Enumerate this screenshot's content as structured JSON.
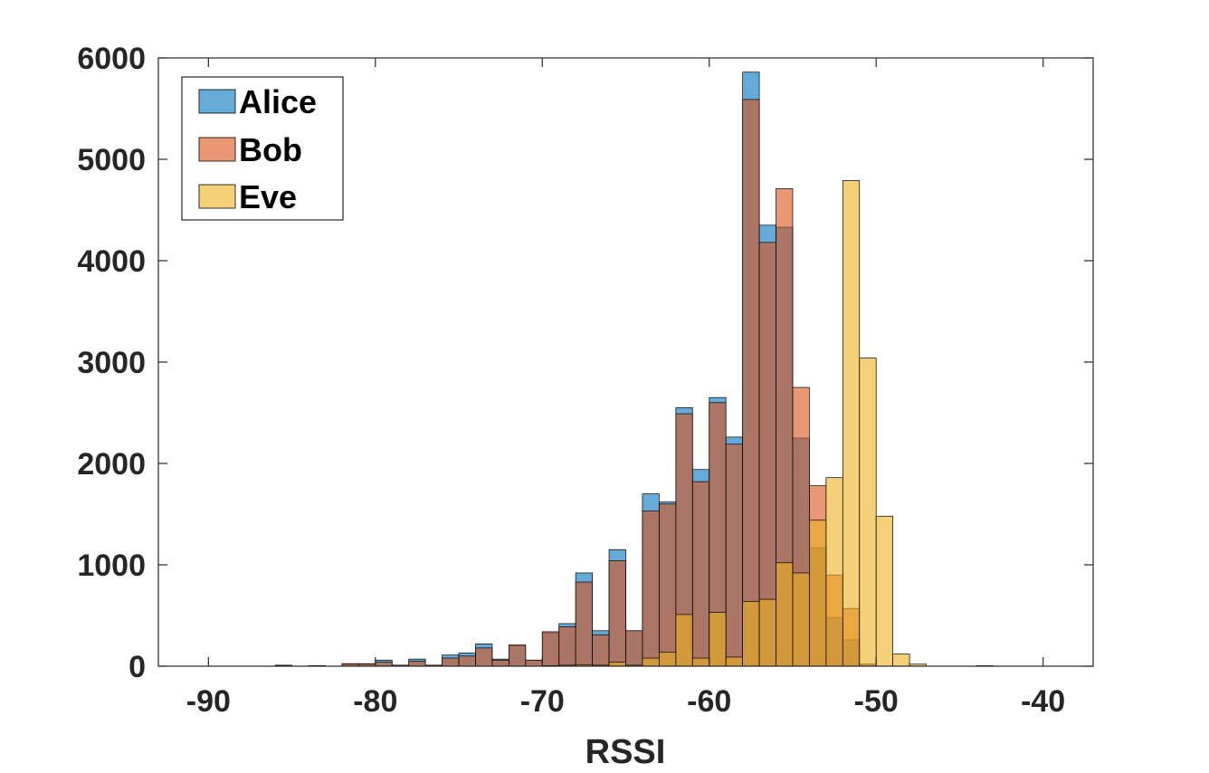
{
  "chart_data": {
    "type": "bar",
    "subtype": "overlaid-histogram",
    "title": "",
    "xlabel": "RSSI",
    "ylabel": "",
    "xlim": [
      -93,
      -37
    ],
    "ylim": [
      0,
      6000
    ],
    "xticks": [
      -90,
      -80,
      -70,
      -60,
      -50,
      -40
    ],
    "yticks": [
      0,
      1000,
      2000,
      3000,
      4000,
      5000,
      6000
    ],
    "grid": false,
    "legend_position": "top-left",
    "bin_width": 1,
    "series": [
      {
        "name": "Alice",
        "color": "#0072BD",
        "bins": [
          {
            "x": -86,
            "y": 10
          },
          {
            "x": -84,
            "y": 5
          },
          {
            "x": -82,
            "y": 20
          },
          {
            "x": -81,
            "y": 20
          },
          {
            "x": -80,
            "y": 60
          },
          {
            "x": -79,
            "y": 10
          },
          {
            "x": -78,
            "y": 70
          },
          {
            "x": -77,
            "y": 10
          },
          {
            "x": -76,
            "y": 110
          },
          {
            "x": -75,
            "y": 130
          },
          {
            "x": -74,
            "y": 220
          },
          {
            "x": -73,
            "y": 70
          },
          {
            "x": -72,
            "y": 200
          },
          {
            "x": -71,
            "y": 60
          },
          {
            "x": -70,
            "y": 330
          },
          {
            "x": -69,
            "y": 420
          },
          {
            "x": -68,
            "y": 920
          },
          {
            "x": -67,
            "y": 350
          },
          {
            "x": -66,
            "y": 1150
          },
          {
            "x": -65,
            "y": 350
          },
          {
            "x": -64,
            "y": 1700
          },
          {
            "x": -63,
            "y": 1620
          },
          {
            "x": -62,
            "y": 2550
          },
          {
            "x": -61,
            "y": 1940
          },
          {
            "x": -60,
            "y": 2650
          },
          {
            "x": -59,
            "y": 2260
          },
          {
            "x": -58,
            "y": 5860
          },
          {
            "x": -57,
            "y": 4350
          },
          {
            "x": -56,
            "y": 4330
          },
          {
            "x": -55,
            "y": 2250
          },
          {
            "x": -54,
            "y": 1170
          },
          {
            "x": -53,
            "y": 480
          },
          {
            "x": -52,
            "y": 260
          },
          {
            "x": -51,
            "y": 20
          },
          {
            "x": -44,
            "y": 5
          }
        ]
      },
      {
        "name": "Bob",
        "color": "#D95319",
        "bins": [
          {
            "x": -86,
            "y": 5
          },
          {
            "x": -84,
            "y": 5
          },
          {
            "x": -82,
            "y": 25
          },
          {
            "x": -81,
            "y": 25
          },
          {
            "x": -80,
            "y": 40
          },
          {
            "x": -79,
            "y": 10
          },
          {
            "x": -78,
            "y": 50
          },
          {
            "x": -77,
            "y": 10
          },
          {
            "x": -76,
            "y": 80
          },
          {
            "x": -75,
            "y": 100
          },
          {
            "x": -74,
            "y": 180
          },
          {
            "x": -73,
            "y": 60
          },
          {
            "x": -72,
            "y": 210
          },
          {
            "x": -71,
            "y": 60
          },
          {
            "x": -70,
            "y": 340
          },
          {
            "x": -69,
            "y": 390
          },
          {
            "x": -68,
            "y": 830
          },
          {
            "x": -67,
            "y": 310
          },
          {
            "x": -66,
            "y": 1040
          },
          {
            "x": -65,
            "y": 350
          },
          {
            "x": -64,
            "y": 1530
          },
          {
            "x": -63,
            "y": 1600
          },
          {
            "x": -62,
            "y": 2490
          },
          {
            "x": -61,
            "y": 1820
          },
          {
            "x": -60,
            "y": 2600
          },
          {
            "x": -59,
            "y": 2190
          },
          {
            "x": -58,
            "y": 5590
          },
          {
            "x": -57,
            "y": 4180
          },
          {
            "x": -56,
            "y": 4710
          },
          {
            "x": -55,
            "y": 2750
          },
          {
            "x": -54,
            "y": 1780
          },
          {
            "x": -53,
            "y": 900
          },
          {
            "x": -52,
            "y": 570
          },
          {
            "x": -51,
            "y": 20
          }
        ]
      },
      {
        "name": "Eve",
        "color": "#EDB120",
        "bins": [
          {
            "x": -70,
            "y": 5
          },
          {
            "x": -69,
            "y": 10
          },
          {
            "x": -68,
            "y": 15
          },
          {
            "x": -67,
            "y": 10
          },
          {
            "x": -66,
            "y": 40
          },
          {
            "x": -65,
            "y": 10
          },
          {
            "x": -64,
            "y": 80
          },
          {
            "x": -63,
            "y": 140
          },
          {
            "x": -62,
            "y": 510
          },
          {
            "x": -61,
            "y": 80
          },
          {
            "x": -60,
            "y": 530
          },
          {
            "x": -59,
            "y": 90
          },
          {
            "x": -58,
            "y": 640
          },
          {
            "x": -57,
            "y": 660
          },
          {
            "x": -56,
            "y": 1020
          },
          {
            "x": -55,
            "y": 920
          },
          {
            "x": -54,
            "y": 1440
          },
          {
            "x": -53,
            "y": 1860
          },
          {
            "x": -52,
            "y": 4790
          },
          {
            "x": -51,
            "y": 3040
          },
          {
            "x": -50,
            "y": 1480
          },
          {
            "x": -49,
            "y": 120
          },
          {
            "x": -48,
            "y": 20
          }
        ]
      }
    ]
  }
}
